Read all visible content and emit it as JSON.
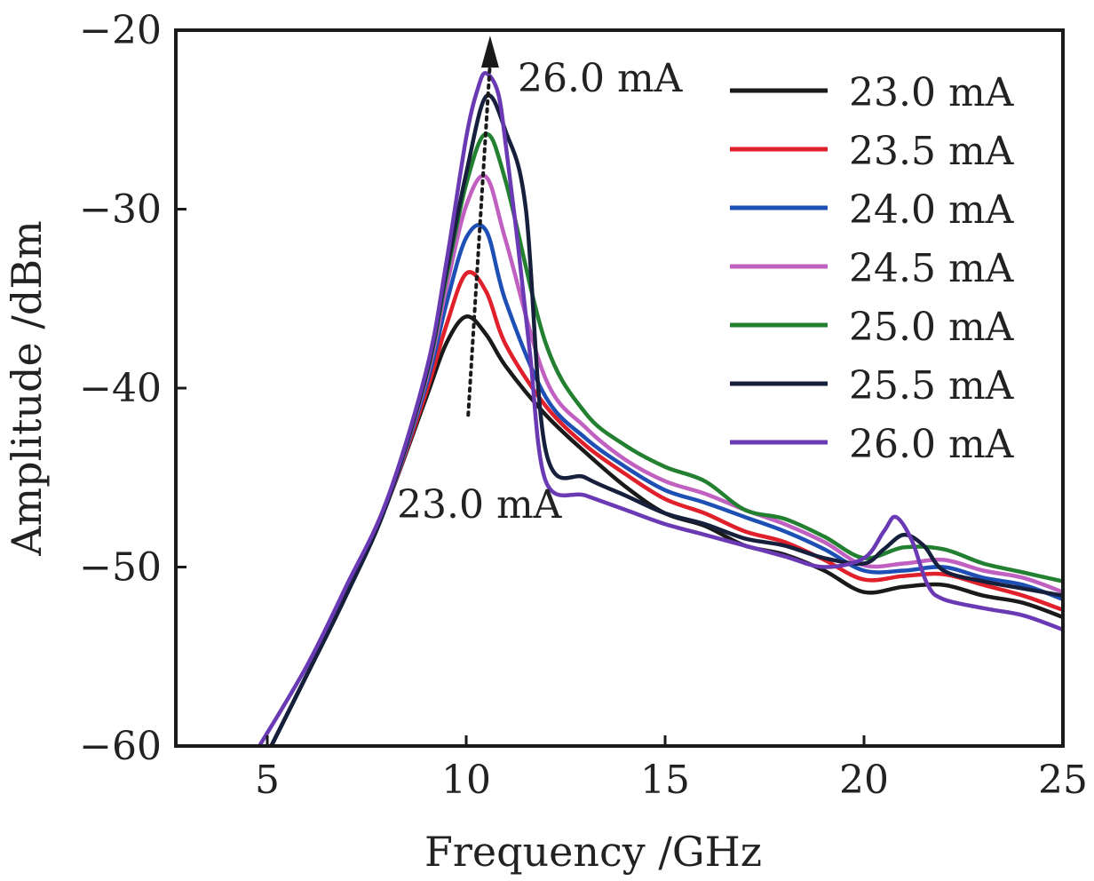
{
  "chart_data": {
    "type": "line",
    "title": "",
    "xlabel": "Frequency /GHz",
    "ylabel": "Amplitude /dBm",
    "xlim": [
      2.7,
      25
    ],
    "ylim": [
      -60,
      -20
    ],
    "xticks": [
      5,
      10,
      15,
      20,
      25
    ],
    "yticks": [
      -60,
      -50,
      -40,
      -30,
      -20
    ],
    "xtick_labels": [
      "5",
      "10",
      "15",
      "20",
      "25"
    ],
    "ytick_labels": [
      "−60",
      "−50",
      "−40",
      "−30",
      "−20"
    ],
    "grid": false,
    "legend_position": "top-right",
    "annotations": {
      "top_label": "26.0 mA",
      "bottom_label": "23.0 mA",
      "arrow": {
        "from": [
          10.05,
          -41.5
        ],
        "to": [
          10.6,
          -20.5
        ]
      }
    },
    "series": [
      {
        "name": "23.0 mA",
        "color": "#1a1a1a",
        "x": [
          5.1,
          6,
          7,
          8,
          9,
          9.5,
          10,
          10.5,
          11,
          12,
          13,
          14,
          15,
          16,
          17,
          18,
          19,
          20,
          21,
          22,
          23,
          24,
          25
        ],
        "y": [
          -60,
          -56,
          -51.5,
          -46.5,
          -40.5,
          -37.5,
          -36,
          -37,
          -38.8,
          -41.5,
          -43.6,
          -45.5,
          -47,
          -47.7,
          -48.8,
          -49.3,
          -50.2,
          -51.4,
          -51.1,
          -51,
          -51.6,
          -52,
          -52.8
        ]
      },
      {
        "name": "23.5 mA",
        "color": "#e0202a",
        "x": [
          5.1,
          6,
          7,
          8,
          9,
          9.5,
          10,
          10.5,
          11,
          12,
          13,
          14,
          15,
          16,
          17,
          18,
          19,
          20,
          21,
          22,
          23,
          24,
          25
        ],
        "y": [
          -60,
          -56,
          -51.5,
          -46.5,
          -40.2,
          -36.5,
          -33.6,
          -34.6,
          -37.6,
          -41,
          -43.2,
          -44.8,
          -46.2,
          -47,
          -48,
          -48.6,
          -49.6,
          -50.7,
          -50.5,
          -50.4,
          -51,
          -51.6,
          -52.4
        ]
      },
      {
        "name": "24.0 mA",
        "color": "#1e4fb4",
        "x": [
          5.1,
          6,
          7,
          8,
          9,
          9.5,
          10,
          10.5,
          11,
          12,
          13,
          14,
          15,
          16,
          17,
          18,
          19,
          20,
          21,
          22,
          23,
          24,
          25
        ],
        "y": [
          -60,
          -56,
          -51.5,
          -46.5,
          -39.8,
          -35.3,
          -31.6,
          -31.2,
          -35.2,
          -40.5,
          -42.8,
          -44.4,
          -45.7,
          -46.4,
          -47.2,
          -48,
          -49,
          -50.2,
          -50.2,
          -50,
          -50.6,
          -51,
          -51.8
        ]
      },
      {
        "name": "24.5 mA",
        "color": "#c060c0",
        "x": [
          5.1,
          6,
          7,
          8,
          9,
          9.5,
          10,
          10.5,
          11,
          12,
          13,
          14,
          15,
          16,
          17,
          18,
          19,
          20,
          21,
          22,
          23,
          24,
          25
        ],
        "y": [
          -60,
          -56,
          -51.5,
          -46.5,
          -39.5,
          -34.4,
          -29.8,
          -28.2,
          -31.8,
          -39.5,
          -42.2,
          -44,
          -45.2,
          -45.9,
          -46.8,
          -47.6,
          -48.6,
          -49.9,
          -49.8,
          -49.6,
          -50.2,
          -50.6,
          -51.4
        ]
      },
      {
        "name": "25.0 mA",
        "color": "#228030",
        "x": [
          5.1,
          6,
          7,
          8,
          9,
          9.5,
          10,
          10.5,
          11,
          12,
          13,
          14,
          15,
          16,
          17,
          18,
          19,
          20,
          21,
          22,
          23,
          24,
          25
        ],
        "y": [
          -60,
          -56,
          -51.5,
          -46.5,
          -39.3,
          -33.8,
          -28.6,
          -25.8,
          -28.5,
          -37.5,
          -41.4,
          -43.2,
          -44.4,
          -45.2,
          -46.8,
          -47.3,
          -48.3,
          -49.5,
          -48.9,
          -49,
          -49.8,
          -50.3,
          -50.8
        ]
      },
      {
        "name": "25.5 mA",
        "color": "#16203c",
        "x": [
          5.1,
          6,
          7,
          8,
          9,
          9.5,
          10,
          10.5,
          11,
          11.5,
          12,
          13,
          14,
          15,
          16,
          17,
          18,
          19,
          20,
          20.5,
          21,
          21.5,
          22,
          23,
          24,
          25
        ],
        "y": [
          -60,
          -56,
          -51.5,
          -46.5,
          -39.2,
          -33.5,
          -28,
          -23.7,
          -25.7,
          -30,
          -43.5,
          -45,
          -46,
          -47,
          -47.6,
          -48.4,
          -48.8,
          -49.5,
          -49.8,
          -49,
          -48.2,
          -48.8,
          -50.2,
          -50.8,
          -51.2,
          -51.6
        ]
      },
      {
        "name": "26.0 mA",
        "color": "#6a3ab4",
        "x": [
          4.8,
          6,
          7,
          8,
          9,
          9.5,
          10,
          10.3,
          10.5,
          10.8,
          11,
          11.3,
          11.6,
          12,
          13,
          14,
          15,
          16,
          17,
          18,
          19,
          20,
          20.5,
          20.8,
          21.2,
          21.6,
          22,
          23,
          24,
          25
        ],
        "y": [
          -60,
          -55.5,
          -51,
          -46.3,
          -39,
          -33,
          -26,
          -23.2,
          -22.4,
          -23.5,
          -26.5,
          -32,
          -38,
          -45.2,
          -46,
          -46.8,
          -47.6,
          -48.2,
          -48.8,
          -49.4,
          -50,
          -49.5,
          -48,
          -47.2,
          -48.5,
          -51,
          -51.8,
          -52.3,
          -52.7,
          -53.5
        ]
      }
    ]
  }
}
